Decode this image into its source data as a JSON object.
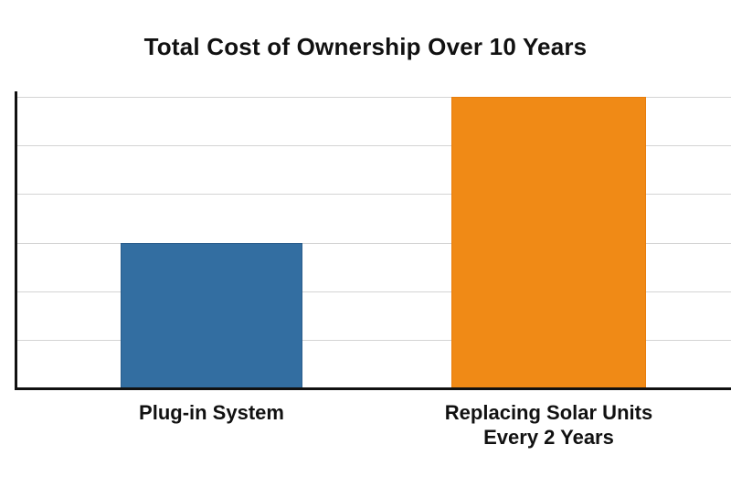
{
  "chart_data": {
    "type": "bar",
    "title": "Total Cost of Ownership Over 10 Years",
    "categories": [
      "Plug-in System",
      "Replacing Solar Units Every 2 Years"
    ],
    "category_lines": [
      [
        "Plug-in System"
      ],
      [
        "Replacing Solar Units",
        "Every 2 Years"
      ]
    ],
    "values": [
      3,
      6
    ],
    "colors": [
      "#336ea1",
      "#f08a16"
    ],
    "xlabel": "",
    "ylabel": "",
    "ylim": [
      0,
      6
    ],
    "y_ticks_labeled": false,
    "grid": true,
    "gridlines": [
      1,
      2,
      3,
      4,
      5,
      6
    ],
    "legend": null,
    "note": "No numeric axis labels shown; values are relative gridline units"
  }
}
